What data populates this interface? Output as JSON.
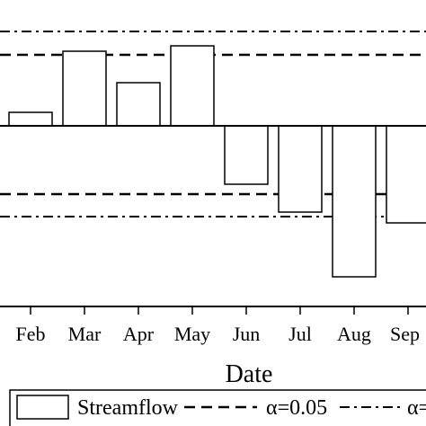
{
  "chart_data": {
    "type": "bar",
    "categories": [
      "Feb",
      "Mar",
      "Apr",
      "May",
      "Jun",
      "Jul",
      "Aug",
      "Sep"
    ],
    "series": [
      {
        "name": "Streamflow",
        "values": [
          0.15,
          0.83,
          0.48,
          0.89,
          -0.65,
          -0.96,
          -1.68,
          -1.08
        ]
      }
    ],
    "reference_lines": [
      {
        "name": "α=0.05",
        "style": "dashed",
        "values": [
          0.79,
          -0.76
        ]
      },
      {
        "name": "",
        "style": "dashdot",
        "values": [
          1.05,
          -1.01
        ]
      }
    ],
    "ylim": [
      -2.0,
      1.1
    ],
    "xlabel": "Date",
    "ylabel": "",
    "legend": {
      "placement": "bottom",
      "entries": [
        "Streamflow",
        "α=0.05",
        "α="
      ]
    },
    "grid": false,
    "bar_fill": "#ffffff",
    "bar_stroke": "#000000"
  }
}
